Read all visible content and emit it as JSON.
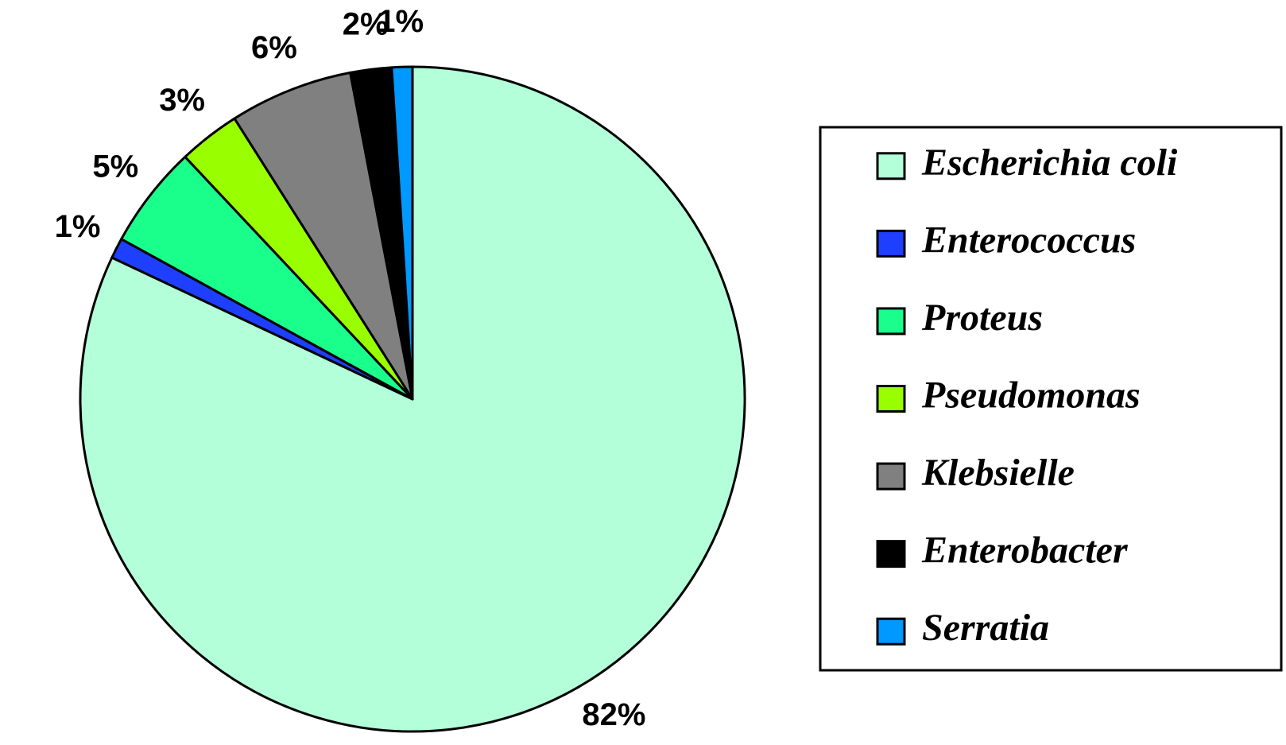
{
  "chart_data": {
    "type": "pie",
    "categories": [
      "Escherichia coli",
      "Enterococcus",
      "Proteus",
      "Pseudomonas",
      "Klebsielle",
      "Enterobacter",
      "Serratia"
    ],
    "values": [
      82,
      1,
      5,
      3,
      6,
      2,
      1
    ],
    "value_labels": [
      "82%",
      "1%",
      "5%",
      "3%",
      "6%",
      "2%",
      "1%"
    ],
    "colors": [
      "#b3ffd9",
      "#1f3fff",
      "#1aff8c",
      "#99ff00",
      "#808080",
      "#000000",
      "#0099ff"
    ],
    "legend": "right"
  }
}
